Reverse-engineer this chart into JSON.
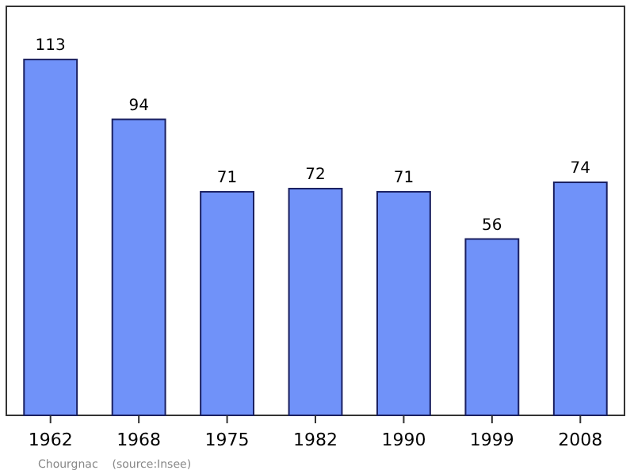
{
  "chart_data": {
    "type": "bar",
    "categories": [
      "1962",
      "1968",
      "1975",
      "1982",
      "1990",
      "1999",
      "2008"
    ],
    "values": [
      113,
      94,
      71,
      72,
      71,
      56,
      74
    ],
    "color": "#7092f9",
    "data_labels": true,
    "annotations": [
      "Chourgnac    (source:Insee)"
    ]
  }
}
